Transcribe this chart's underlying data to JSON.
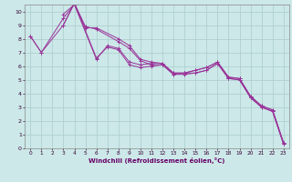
{
  "xlabel": "Windchill (Refroidissement éolien,°C)",
  "bg_color": "#cce8e8",
  "grid_color": "#aacccc",
  "line_color": "#993399",
  "xlim": [
    -0.5,
    23.5
  ],
  "ylim": [
    0,
    10.5
  ],
  "yticks": [
    0,
    1,
    2,
    3,
    4,
    5,
    6,
    7,
    8,
    9,
    10
  ],
  "xticks": [
    0,
    1,
    2,
    3,
    4,
    5,
    6,
    7,
    8,
    9,
    10,
    11,
    12,
    13,
    14,
    15,
    16,
    17,
    18,
    19,
    20,
    21,
    22,
    23
  ],
  "lines": [
    {
      "x": [
        0,
        1,
        3,
        4,
        6,
        7,
        8,
        9,
        10,
        11,
        12,
        13,
        14,
        15,
        16,
        17,
        18,
        19,
        20,
        21,
        22,
        23
      ],
      "y": [
        8.2,
        7.0,
        9.5,
        10.5,
        6.5,
        7.5,
        7.3,
        6.3,
        6.1,
        6.2,
        6.2,
        5.5,
        5.5,
        5.7,
        5.9,
        6.3,
        5.2,
        5.1,
        3.8,
        3.1,
        2.8,
        0.4
      ]
    },
    {
      "x": [
        3,
        4,
        5,
        6,
        8,
        9,
        10,
        11,
        12,
        13,
        14,
        15,
        16,
        17,
        18,
        19,
        20,
        21,
        22,
        23
      ],
      "y": [
        9.8,
        10.5,
        8.8,
        8.8,
        8.0,
        7.5,
        6.5,
        6.3,
        6.2,
        5.5,
        5.5,
        5.7,
        5.9,
        6.3,
        5.2,
        5.1,
        3.8,
        3.1,
        2.8,
        0.4
      ]
    },
    {
      "x": [
        3,
        4,
        5,
        6,
        8,
        9,
        10,
        11,
        12,
        13,
        14,
        15,
        16,
        17,
        18,
        19,
        20,
        21,
        22,
        23
      ],
      "y": [
        9.0,
        10.6,
        8.9,
        8.7,
        7.8,
        7.3,
        6.4,
        6.1,
        6.1,
        5.4,
        5.5,
        5.5,
        5.7,
        6.2,
        5.1,
        5.0,
        3.7,
        3.0,
        2.7,
        0.3
      ]
    },
    {
      "x": [
        0,
        1,
        3,
        4,
        6,
        7,
        8,
        9,
        10,
        11,
        12,
        13,
        14,
        15,
        16,
        17,
        18,
        19,
        20,
        21,
        22,
        23
      ],
      "y": [
        8.2,
        7.0,
        9.0,
        10.6,
        6.6,
        7.4,
        7.2,
        6.1,
        5.9,
        6.0,
        6.1,
        5.4,
        5.4,
        5.5,
        5.7,
        6.2,
        5.1,
        5.0,
        3.7,
        3.0,
        2.7,
        0.3
      ]
    }
  ]
}
